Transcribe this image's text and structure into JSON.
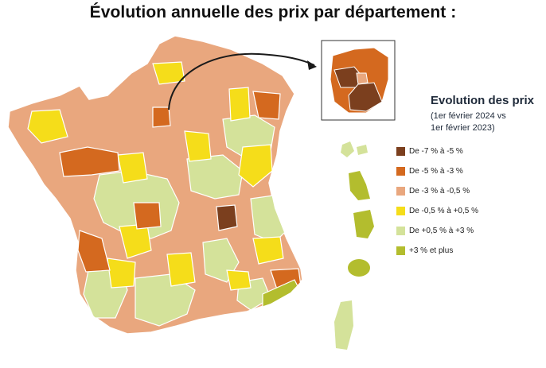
{
  "title": "Évolution annuelle des prix par département :",
  "legend": {
    "title": "Evolution des prix",
    "subtitle_line1": "(1er février 2024 vs",
    "subtitle_line2": "1er février 2023)",
    "items": [
      {
        "label": "De -7 % à -5 %",
        "color": "#7b3f1e"
      },
      {
        "label": "De -5 % à -3 %",
        "color": "#d4691f"
      },
      {
        "label": "De -3 % à -0,5 %",
        "color": "#e9a77e"
      },
      {
        "label": "De -0,5 % à +0,5 %",
        "color": "#f5dd1a"
      },
      {
        "label": "De +0,5 % à +3 %",
        "color": "#d4e29a"
      },
      {
        "label": "+3 % et plus",
        "color": "#b3bd2e"
      }
    ]
  }
}
